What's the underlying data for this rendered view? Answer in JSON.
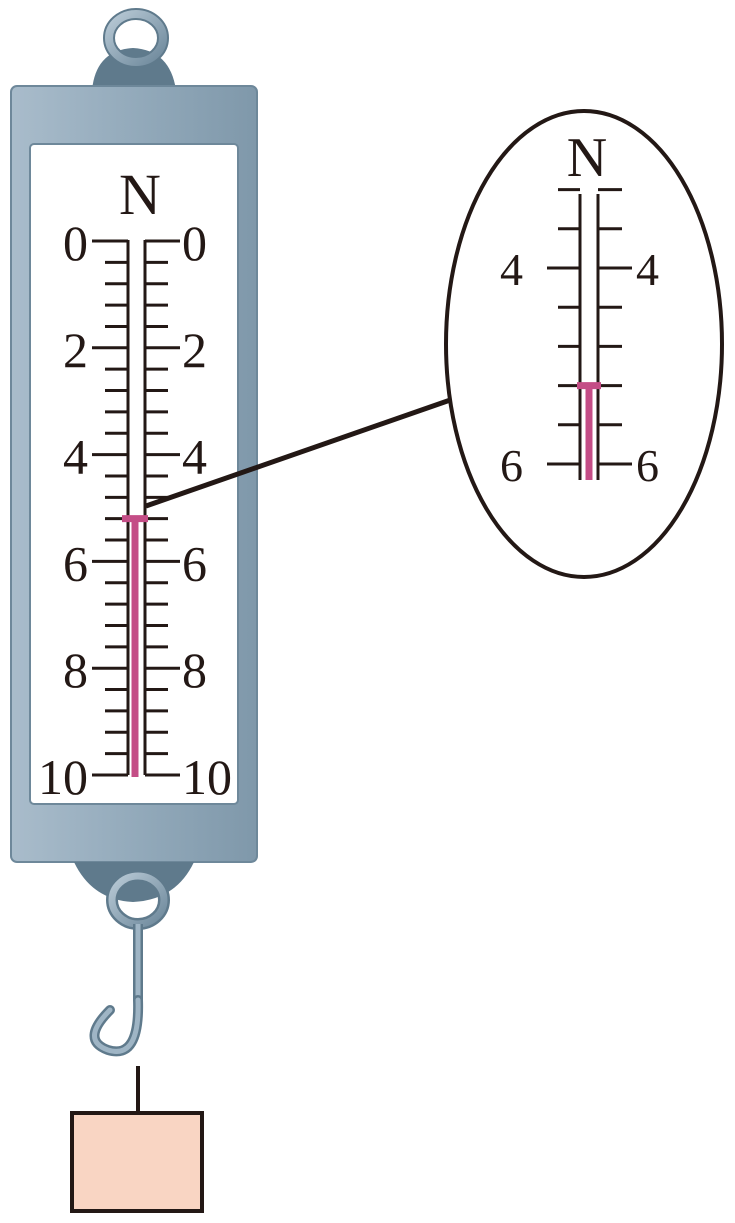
{
  "unit": "N",
  "scale": {
    "min": 0,
    "max": 10,
    "major_step": 2,
    "divisions_per_major": 5,
    "labels": [
      "0",
      "2",
      "4",
      "6",
      "8",
      "10"
    ]
  },
  "reading": 5.2,
  "magnifier": {
    "unit": "N",
    "range": [
      4,
      6
    ],
    "labels": [
      "4",
      "6"
    ]
  },
  "colors": {
    "casing": "#8ea6b7",
    "casing_dark": "#5f7a8c",
    "indicator": "#c44d86",
    "block": "#f9d5c3",
    "ink": "#231815"
  },
  "icons": {
    "top_ring": "ring-icon",
    "bottom_hook": "hook-icon",
    "weight": "block-weight"
  }
}
